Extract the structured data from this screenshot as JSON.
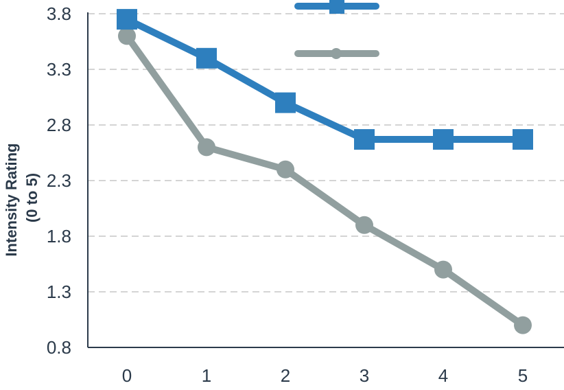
{
  "chart_data": {
    "type": "line",
    "title": "",
    "xlabel": "",
    "ylabel_lines": [
      "Intensity Rating",
      "(0 to 5)"
    ],
    "x": [
      0,
      1,
      2,
      3,
      4,
      5
    ],
    "x_tick_labels": [
      "0",
      "1",
      "2",
      "3",
      "4",
      "5"
    ],
    "ylim": [
      0.8,
      3.8
    ],
    "y_ticks": [
      0.8,
      1.3,
      1.8,
      2.3,
      2.8,
      3.3,
      3.8
    ],
    "y_tick_labels": [
      "0.8",
      "1.3",
      "1.8",
      "2.3",
      "2.8",
      "3.3",
      "3.8"
    ],
    "grid": "horizontal-dashed",
    "legend_position": "top-center",
    "series": [
      {
        "values": [
          3.75,
          3.4,
          3.0,
          2.67,
          2.67,
          2.67
        ],
        "color": "#2e7fbe",
        "marker": "square"
      },
      {
        "values": [
          3.6,
          2.6,
          2.4,
          1.9,
          1.5,
          1.0
        ],
        "color": "#919f9f",
        "marker": "circle"
      }
    ]
  }
}
